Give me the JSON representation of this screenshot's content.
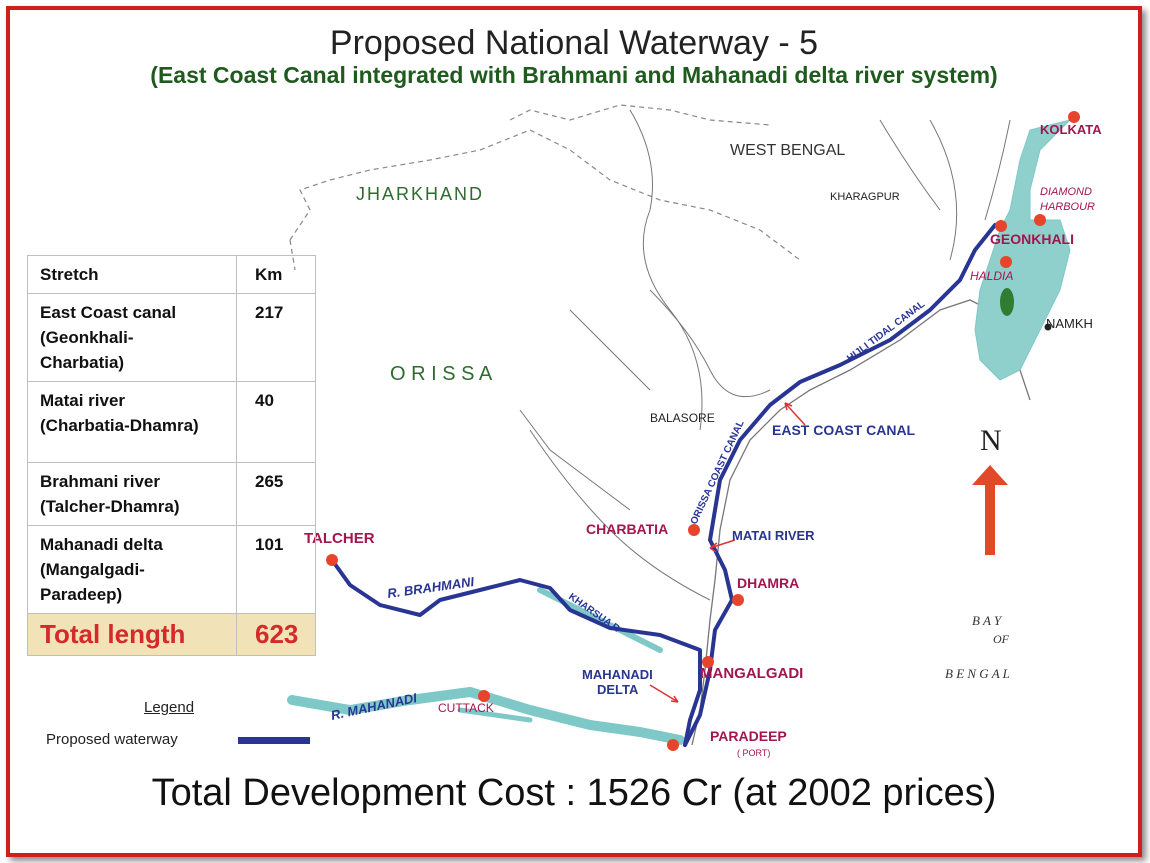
{
  "title": "Proposed National Waterway - 5",
  "subtitle": "(East Coast Canal integrated with Brahmani and Mahanadi delta river system)",
  "cost_text": "Total Development Cost : 1526 Cr (at 2002 prices)",
  "table": {
    "headers": [
      "Stretch",
      "Km"
    ],
    "rows": [
      {
        "name_lines": [
          "East Coast canal",
          "(Geonkhali-",
          "Charbatia)"
        ],
        "km": "217"
      },
      {
        "name_lines": [
          "Matai river",
          "(Charbatia-Dhamra)"
        ],
        "km": "40"
      },
      {
        "name_lines": [
          "Brahmani river",
          "(Talcher-Dhamra)"
        ],
        "km": "265"
      },
      {
        "name_lines": [
          "Mahanadi delta",
          "(Mangalgadi-",
          "Paradeep)"
        ],
        "km": "101"
      }
    ],
    "total_label": "Total length",
    "total_km": "623"
  },
  "legend": {
    "title": "Legend",
    "label": "Proposed waterway"
  },
  "regions": {
    "jharkhand": "JHARKHAND",
    "orissa": "O R I S S A",
    "west_bengal": "WEST BENGAL",
    "bay_line1": "B A Y",
    "bay_line2": "OF",
    "bay_line3": "B E N G A L"
  },
  "places": {
    "kolkata": "KOLKATA",
    "diamond1": "DIAMOND",
    "diamond2": "HARBOUR",
    "geonkhali": "GEONKHALI",
    "haldia": "HALDIA",
    "namkhana": "NAMKH",
    "kharagpur": "KHARAGPUR",
    "balasore": "BALASORE",
    "charbatia": "CHARBATIA",
    "dhamra": "DHAMRA",
    "mangalgadi": "MANGALGADI",
    "paradeep": "PARADEEP",
    "port": "( PORT)",
    "talcher": "TALCHER",
    "cuttack": "CUTTACK"
  },
  "labels": {
    "east_coast_canal": "EAST COAST CANAL",
    "matai_river": "MATAI RIVER",
    "mahanadi_delta1": "MAHANADI",
    "mahanadi_delta2": "DELTA",
    "hijli": "HIJLI TIDAL CANAL",
    "orissa_coast": "ORISSA COAST CANAL",
    "r_brahmani": "R. BRAHMANI",
    "r_mahanadi": "R. MAHANADI",
    "kharsua": "KHARSUA R"
  },
  "north": "N",
  "colors": {
    "waterway": "#283593",
    "river": "#7fc8c8",
    "town": "#e6452c",
    "place_text": "#a3154e",
    "frame": "#cc1f1f",
    "total_bg": "#f2e2b8",
    "total_text": "#d62a2a",
    "region_text": "#2f6b2f"
  }
}
